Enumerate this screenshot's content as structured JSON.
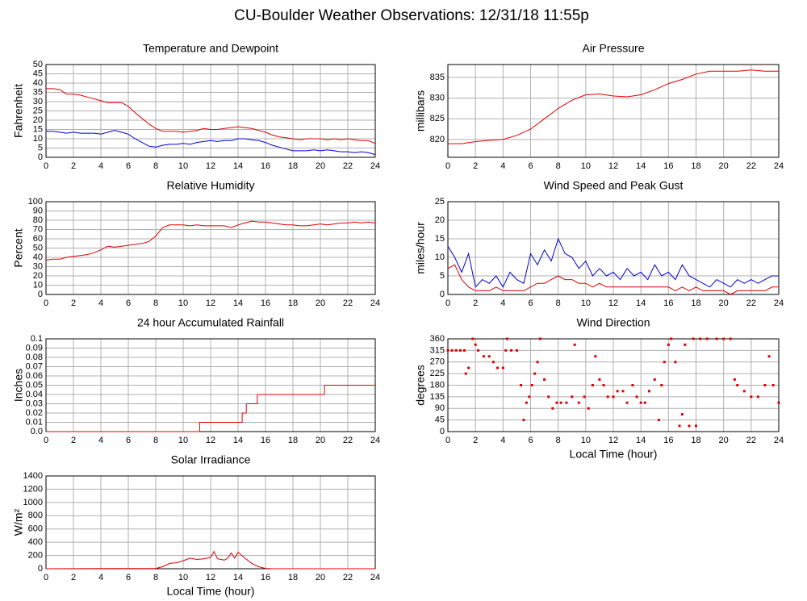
{
  "title": "CU-Boulder Weather Observations: 12/31/18 11:55p",
  "chart_data": [
    {
      "type": "line",
      "title": "Temperature and Dewpoint",
      "ylabel": "Fahrenheit",
      "xlim": [
        0,
        24
      ],
      "xticks": [
        0,
        2,
        4,
        6,
        8,
        10,
        12,
        14,
        16,
        18,
        20,
        22,
        24
      ],
      "ylim": [
        0,
        50
      ],
      "yticks": [
        0,
        5,
        10,
        15,
        20,
        25,
        30,
        35,
        40,
        45,
        50
      ],
      "grid": true,
      "x": [
        0,
        0.5,
        1,
        1.5,
        2,
        2.5,
        3,
        3.5,
        4,
        4.5,
        5,
        5.5,
        6,
        6.5,
        7,
        7.5,
        8,
        8.5,
        9,
        9.5,
        10,
        10.5,
        11,
        11.5,
        12,
        12.5,
        13,
        13.5,
        14,
        14.5,
        15,
        15.5,
        16,
        16.5,
        17,
        17.5,
        18,
        18.5,
        19,
        19.5,
        20,
        20.5,
        21,
        21.5,
        22,
        22.5,
        23,
        23.5,
        24
      ],
      "series": [
        {
          "color": "#e00000",
          "values": [
            37,
            37,
            36.5,
            34,
            34,
            33.5,
            32.5,
            31.5,
            30.5,
            29.5,
            29.5,
            29.5,
            27.5,
            24,
            21,
            18,
            15.5,
            14,
            14,
            14,
            13.5,
            14,
            14.5,
            15.5,
            15,
            15,
            15.5,
            16,
            16.5,
            16,
            15.5,
            14.5,
            13.5,
            12,
            11,
            10.5,
            10,
            9.5,
            10,
            10,
            10,
            9.5,
            10,
            9.5,
            10,
            9.5,
            9,
            9,
            7.5
          ]
        },
        {
          "color": "#0000d0",
          "values": [
            14,
            14,
            13.5,
            13,
            13.5,
            13,
            13,
            13,
            12.5,
            13.5,
            14.5,
            13.5,
            12.5,
            10,
            8,
            6,
            5.5,
            6.5,
            7,
            7,
            7.5,
            7,
            8,
            8.5,
            9,
            8.5,
            9,
            9,
            10,
            10,
            9.5,
            9,
            8,
            6.5,
            5.5,
            4.5,
            3.5,
            3.5,
            3.5,
            4,
            3.5,
            4,
            3.5,
            3,
            3,
            2.5,
            3,
            2.5,
            1.5
          ]
        }
      ]
    },
    {
      "type": "line",
      "title": "Air Pressure",
      "ylabel": "millibars",
      "xlim": [
        0,
        24
      ],
      "xticks": [
        0,
        2,
        4,
        6,
        8,
        10,
        12,
        14,
        16,
        18,
        20,
        22,
        24
      ],
      "ylim": [
        815.7,
        838.1
      ],
      "yticks": [
        820,
        825,
        830,
        835
      ],
      "grid": true,
      "x": [
        0,
        1,
        2,
        3,
        4,
        5,
        6,
        7,
        8,
        9,
        10,
        11,
        12,
        13,
        14,
        15,
        16,
        17,
        18,
        19,
        20,
        21,
        22,
        23,
        24
      ],
      "series": [
        {
          "color": "#e00000",
          "values": [
            819,
            819,
            819.5,
            819.8,
            820,
            821,
            822.5,
            825,
            827.5,
            829.5,
            830.8,
            831,
            830.5,
            830.3,
            830.8,
            832,
            833.5,
            834.5,
            835.8,
            836.5,
            836.5,
            836.5,
            836.8,
            836.5,
            836.5
          ]
        }
      ]
    },
    {
      "type": "line",
      "title": "Relative Humidity",
      "ylabel": "Percent",
      "xlim": [
        0,
        24
      ],
      "xticks": [
        0,
        2,
        4,
        6,
        8,
        10,
        12,
        14,
        16,
        18,
        20,
        22,
        24
      ],
      "ylim": [
        0,
        100
      ],
      "yticks": [
        0,
        10,
        20,
        30,
        40,
        50,
        60,
        70,
        80,
        90,
        100
      ],
      "grid": true,
      "x": [
        0,
        0.5,
        1,
        1.5,
        2,
        2.5,
        3,
        3.5,
        4,
        4.5,
        5,
        5.5,
        6,
        6.5,
        7,
        7.5,
        8,
        8.5,
        9,
        9.5,
        10,
        10.5,
        11,
        11.5,
        12,
        12.5,
        13,
        13.5,
        14,
        14.5,
        15,
        15.5,
        16,
        16.5,
        17,
        17.5,
        18,
        18.5,
        19,
        19.5,
        20,
        20.5,
        21,
        21.5,
        22,
        22.5,
        23,
        23.5,
        24
      ],
      "series": [
        {
          "color": "#e00000",
          "values": [
            37,
            38,
            38,
            40,
            41,
            42,
            43,
            45,
            48,
            52,
            51,
            52,
            53,
            54,
            55,
            57,
            63,
            72,
            75,
            75,
            75,
            74,
            75,
            74,
            74,
            74,
            74,
            72,
            75,
            77,
            79,
            78,
            78,
            77,
            76,
            75,
            75,
            74,
            74,
            75,
            76,
            75,
            76,
            77,
            77,
            78,
            77,
            78,
            77
          ]
        }
      ]
    },
    {
      "type": "line",
      "title": "Wind Speed and Peak Gust",
      "ylabel": "miles/hour",
      "xlim": [
        0,
        24
      ],
      "xticks": [
        0,
        2,
        4,
        6,
        8,
        10,
        12,
        14,
        16,
        18,
        20,
        22,
        24
      ],
      "ylim": [
        0,
        25
      ],
      "yticks": [
        0,
        5,
        10,
        15,
        20,
        25
      ],
      "grid": true,
      "x": [
        0,
        0.5,
        1,
        1.5,
        2,
        2.5,
        3,
        3.5,
        4,
        4.5,
        5,
        5.5,
        6,
        6.5,
        7,
        7.5,
        8,
        8.5,
        9,
        9.5,
        10,
        10.5,
        11,
        11.5,
        12,
        12.5,
        13,
        13.5,
        14,
        14.5,
        15,
        15.5,
        16,
        16.5,
        17,
        17.5,
        18,
        18.5,
        19,
        19.5,
        20,
        20.5,
        21,
        21.5,
        22,
        22.5,
        23,
        23.5,
        24
      ],
      "series": [
        {
          "color": "#0000d0",
          "values": [
            13,
            10,
            6,
            11,
            2,
            4,
            3,
            5,
            2,
            6,
            4,
            3,
            11,
            8,
            12,
            9,
            15,
            11,
            10,
            7,
            9,
            5,
            7,
            5,
            6,
            4,
            7,
            5,
            6,
            4,
            8,
            5,
            6,
            4,
            8,
            5,
            4,
            3,
            2,
            4,
            3,
            2,
            4,
            3,
            4,
            3,
            4,
            5,
            5
          ]
        },
        {
          "color": "#e00000",
          "values": [
            7,
            8,
            4,
            2,
            1,
            1,
            1,
            2,
            1,
            1,
            1,
            1,
            2,
            3,
            3,
            4,
            5,
            4,
            4,
            3,
            3,
            2,
            3,
            2,
            2,
            2,
            2,
            2,
            2,
            2,
            2,
            2,
            2,
            1,
            2,
            1,
            2,
            1,
            1,
            1,
            1,
            0,
            1,
            1,
            1,
            1,
            1,
            2,
            2
          ]
        }
      ]
    },
    {
      "type": "line",
      "title": "24 hour Accumulated Rainfall",
      "ylabel": "Inches",
      "xlim": [
        0,
        24
      ],
      "xticks": [
        0,
        2,
        4,
        6,
        8,
        10,
        12,
        14,
        16,
        18,
        20,
        22,
        24
      ],
      "ylim": [
        0,
        0.1
      ],
      "yticks": [
        {
          "value": 0,
          "label": "0.0"
        },
        0.01,
        0.02,
        0.03,
        0.04,
        0.05,
        0.06,
        0.07,
        0.08,
        0.09,
        0.1
      ],
      "grid": true,
      "x": [
        0,
        11.2,
        11.2,
        14.3,
        14.3,
        14.6,
        14.6,
        15.4,
        15.4,
        20.3,
        20.3,
        24
      ],
      "series": [
        {
          "color": "#e00000",
          "values": [
            0,
            0,
            0.01,
            0.01,
            0.02,
            0.02,
            0.03,
            0.03,
            0.04,
            0.04,
            0.05,
            0.05
          ]
        }
      ]
    },
    {
      "type": "scatter",
      "title": "Wind Direction",
      "ylabel": "degrees",
      "xlabel": "Local Time (hour)",
      "xlim": [
        0,
        24
      ],
      "xticks": [
        0,
        2,
        4,
        6,
        8,
        10,
        12,
        14,
        16,
        18,
        20,
        22,
        24
      ],
      "ylim": [
        0,
        360
      ],
      "yticks": [
        0,
        45,
        90,
        135,
        180,
        225,
        270,
        315,
        360
      ],
      "grid": true,
      "x": [
        0,
        0.3,
        0.6,
        0.9,
        1.2,
        1.3,
        1.5,
        1.8,
        2,
        2.2,
        2.6,
        3,
        3.3,
        3.6,
        4,
        4.2,
        4.3,
        4.6,
        5,
        5.3,
        5.5,
        5.7,
        5.9,
        6.1,
        6.3,
        6.5,
        6.7,
        7,
        7.3,
        7.6,
        7.9,
        8.2,
        8.6,
        9,
        9.2,
        9.5,
        9.9,
        10.2,
        10.5,
        10.7,
        11,
        11.3,
        11.6,
        12,
        12.3,
        12.7,
        13,
        13.4,
        13.7,
        14,
        14.3,
        14.6,
        15,
        15.3,
        15.5,
        15.7,
        16,
        16.2,
        16.5,
        16.8,
        17,
        17.2,
        17.5,
        17.8,
        18,
        18.3,
        18.8,
        19.5,
        20,
        20.5,
        20.8,
        21,
        21.5,
        22,
        22.5,
        23,
        23.3,
        23.6,
        24
      ],
      "series": [
        {
          "color": "#e00000",
          "values": [
            315,
            315,
            315,
            315,
            315,
            225,
            247,
            360,
            337,
            315,
            292,
            292,
            270,
            247,
            247,
            315,
            360,
            315,
            315,
            180,
            45,
            112,
            135,
            180,
            225,
            270,
            360,
            202,
            135,
            90,
            112,
            112,
            112,
            135,
            337,
            112,
            135,
            90,
            180,
            292,
            202,
            180,
            135,
            135,
            157,
            157,
            112,
            180,
            135,
            112,
            112,
            157,
            202,
            45,
            180,
            270,
            337,
            360,
            270,
            22,
            67,
            337,
            22,
            360,
            22,
            360,
            360,
            360,
            360,
            360,
            202,
            180,
            157,
            135,
            135,
            180,
            292,
            180,
            112
          ]
        }
      ]
    },
    {
      "type": "line",
      "title": "Solar Irradiance",
      "ylabel": "W/m²",
      "xlabel": "Local Time (hour)",
      "xlim": [
        0,
        24
      ],
      "xticks": [
        0,
        2,
        4,
        6,
        8,
        10,
        12,
        14,
        16,
        18,
        20,
        22,
        24
      ],
      "ylim": [
        0,
        1400
      ],
      "yticks": [
        0,
        200,
        400,
        600,
        800,
        1000,
        1200,
        1400
      ],
      "grid": true,
      "x": [
        0,
        8,
        8.5,
        9,
        9.5,
        10,
        10.5,
        11,
        11.5,
        12,
        12.25,
        12.5,
        13,
        13.25,
        13.5,
        13.75,
        14,
        14.5,
        15,
        15.5,
        16,
        16.5,
        24
      ],
      "series": [
        {
          "color": "#e00000",
          "values": [
            0,
            5,
            30,
            80,
            90,
            120,
            160,
            140,
            150,
            170,
            260,
            150,
            130,
            160,
            240,
            160,
            250,
            160,
            80,
            30,
            5,
            0,
            0
          ]
        }
      ]
    }
  ]
}
